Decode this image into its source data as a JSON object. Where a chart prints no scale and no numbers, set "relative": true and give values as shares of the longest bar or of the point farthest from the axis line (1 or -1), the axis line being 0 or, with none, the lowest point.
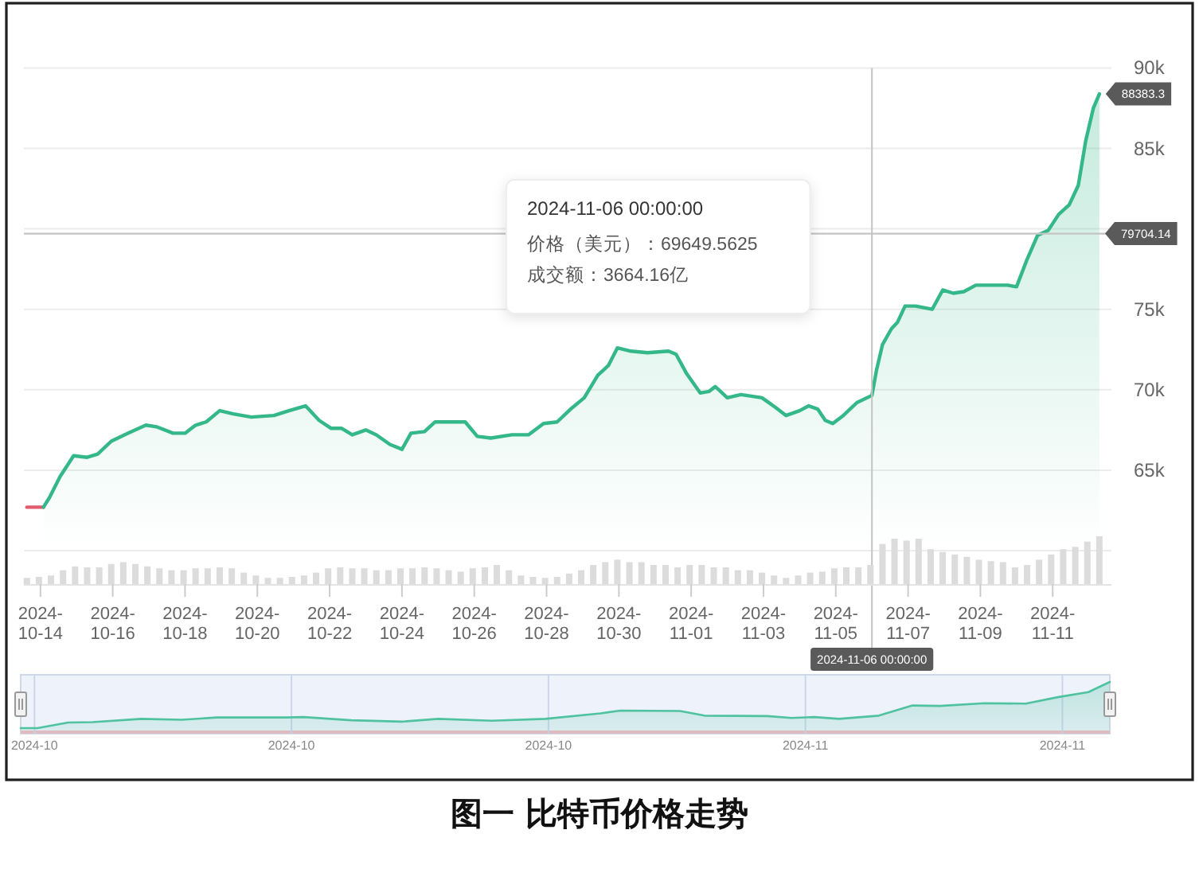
{
  "chart_data": [
    {
      "type": "area",
      "title": "图一 比特币价格走势",
      "xlim": [
        "2024-10-13T13:00",
        "2024-11-12T15:00"
      ],
      "ylim": [
        60000,
        90000
      ],
      "yticks": [
        {
          "value": 60000,
          "label": null
        },
        {
          "value": 65000,
          "label": "65k"
        },
        {
          "value": 70000,
          "label": "70k"
        },
        {
          "value": 75000,
          "label": "75k"
        },
        {
          "value": 80000,
          "label": null
        },
        {
          "value": 85000,
          "label": "85k"
        },
        {
          "value": 90000,
          "label": "90k"
        }
      ],
      "grid": "y",
      "tick_labels": "y",
      "series": [
        {
          "type": "line",
          "color": "#e35b6f",
          "x": [
            "2024-10-13T15:00",
            "2024-10-14T02:00"
          ],
          "values": [
            62700,
            62700
          ]
        },
        {
          "color": "#34b889",
          "x": [
            "2024-10-14T02:00",
            "2024-10-14T06:00",
            "2024-10-14T13:00",
            "2024-10-14T22:00",
            "2024-10-15T07:00",
            "2024-10-15T14:00",
            "2024-10-15T23:00",
            "2024-10-16T10:00",
            "2024-10-16T22:00",
            "2024-10-17T05:00",
            "2024-10-17T16:00",
            "2024-10-18T00:00",
            "2024-10-18T07:00",
            "2024-10-18T14:00",
            "2024-10-18T23:00",
            "2024-10-19T08:00",
            "2024-10-19T20:00",
            "2024-10-20T11:00",
            "2024-10-20T21:00",
            "2024-10-21T08:00",
            "2024-10-21T17:00",
            "2024-10-22T01:00",
            "2024-10-22T08:00",
            "2024-10-22T15:00",
            "2024-10-23T00:00",
            "2024-10-23T07:00",
            "2024-10-23T16:00",
            "2024-10-24T00:00",
            "2024-10-24T06:00",
            "2024-10-24T15:00",
            "2024-10-24T22:00",
            "2024-10-25T18:00",
            "2024-10-26T02:00",
            "2024-10-26T11:00",
            "2024-10-27T01:00",
            "2024-10-27T12:00",
            "2024-10-27T22:00",
            "2024-10-28T07:00",
            "2024-10-28T16:00",
            "2024-10-29T01:00",
            "2024-10-29T10:00",
            "2024-10-29T17:00",
            "2024-10-29T23:00",
            "2024-10-30T08:00",
            "2024-10-30T19:00",
            "2024-10-31T09:00",
            "2024-10-31T14:00",
            "2024-10-31T21:00",
            "2024-11-01T06:00",
            "2024-11-01T12:00",
            "2024-11-01T16:00",
            "2024-11-02T00:00",
            "2024-11-02T09:00",
            "2024-11-02T23:00",
            "2024-11-03T08:00",
            "2024-11-03T15:00",
            "2024-11-04T00:00",
            "2024-11-04T06:00",
            "2024-11-04T12:00",
            "2024-11-04T17:00",
            "2024-11-04T22:00",
            "2024-11-05T05:00",
            "2024-11-05T14:00",
            "2024-11-06T00:00",
            "2024-11-06T03:00",
            "2024-11-06T07:00",
            "2024-11-06T13:00",
            "2024-11-06T17:00",
            "2024-11-06T22:00",
            "2024-11-07T05:00",
            "2024-11-07T16:00",
            "2024-11-07T23:00",
            "2024-11-08T06:00",
            "2024-11-08T13:00",
            "2024-11-08T21:00",
            "2024-11-09T08:00",
            "2024-11-09T18:00",
            "2024-11-10T00:00",
            "2024-11-10T07:00",
            "2024-11-10T14:00",
            "2024-11-10T21:00",
            "2024-11-11T04:00",
            "2024-11-11T11:00",
            "2024-11-11T17:00",
            "2024-11-11T22:00",
            "2024-11-12T03:00",
            "2024-11-12T07:00"
          ],
          "values": [
            62700,
            63300,
            64600,
            65900,
            65800,
            66000,
            66800,
            67300,
            67800,
            67700,
            67300,
            67300,
            67800,
            68000,
            68700,
            68500,
            68300,
            68400,
            68700,
            69000,
            68100,
            67600,
            67600,
            67200,
            67500,
            67200,
            66600,
            66300,
            67300,
            67400,
            68000,
            68000,
            67100,
            67000,
            67200,
            67200,
            67900,
            68000,
            68800,
            69500,
            70900,
            71500,
            72600,
            72400,
            72300,
            72400,
            72200,
            71000,
            69800,
            69900,
            70200,
            69500,
            69700,
            69500,
            68900,
            68400,
            68700,
            69000,
            68800,
            68100,
            67900,
            68400,
            69200,
            69649.5625,
            71200,
            72800,
            73800,
            74200,
            75200,
            75200,
            75000,
            76200,
            76000,
            76100,
            76500,
            76500,
            76500,
            76400,
            78100,
            79600,
            79900,
            80900,
            81500,
            82700,
            85500,
            87500,
            88383.3
          ]
        }
      ],
      "ref_lines": [
        {
          "axis": "y",
          "value": 79704.14,
          "label": "79704.14"
        },
        {
          "axis": "x",
          "value": "2024-11-06",
          "label": "2024-11-06 00:00:00"
        }
      ],
      "annotations": [
        "2024-11-06 00:00:00",
        "价格（美元）：69649.5625",
        "成交额：3664.16亿",
        {
          "text": "88383.3",
          "x": "2024-11-12T07:00",
          "y": 88383.3
        }
      ]
    },
    {
      "type": "bar",
      "relative": true,
      "color": "#dcdcdc",
      "xlim": [
        "2024-10-13T13:00",
        "2024-11-12T15:00"
      ],
      "tick_labels": "x",
      "x": [
        "2024-10-13T15:00",
        "2024-10-13T23:00",
        "2024-10-14T07:00",
        "2024-10-14T15:00",
        "2024-10-14T23:00",
        "2024-10-15T07:00",
        "2024-10-15T15:00",
        "2024-10-15T23:00",
        "2024-10-16T07:00",
        "2024-10-16T15:00",
        "2024-10-16T23:00",
        "2024-10-17T07:00",
        "2024-10-17T15:00",
        "2024-10-17T23:00",
        "2024-10-18T07:00",
        "2024-10-18T15:00",
        "2024-10-18T23:00",
        "2024-10-19T07:00",
        "2024-10-19T15:00",
        "2024-10-19T23:00",
        "2024-10-20T07:00",
        "2024-10-20T15:00",
        "2024-10-20T23:00",
        "2024-10-21T07:00",
        "2024-10-21T15:00",
        "2024-10-21T23:00",
        "2024-10-22T07:00",
        "2024-10-22T15:00",
        "2024-10-22T23:00",
        "2024-10-23T07:00",
        "2024-10-23T15:00",
        "2024-10-23T23:00",
        "2024-10-24T07:00",
        "2024-10-24T15:00",
        "2024-10-24T23:00",
        "2024-10-25T07:00",
        "2024-10-25T15:00",
        "2024-10-25T23:00",
        "2024-10-26T07:00",
        "2024-10-26T15:00",
        "2024-10-26T23:00",
        "2024-10-27T07:00",
        "2024-10-27T15:00",
        "2024-10-27T23:00",
        "2024-10-28T07:00",
        "2024-10-28T15:00",
        "2024-10-28T23:00",
        "2024-10-29T07:00",
        "2024-10-29T15:00",
        "2024-10-29T23:00",
        "2024-10-30T07:00",
        "2024-10-30T15:00",
        "2024-10-30T23:00",
        "2024-10-31T07:00",
        "2024-10-31T15:00",
        "2024-10-31T23:00",
        "2024-11-01T07:00",
        "2024-11-01T15:00",
        "2024-11-01T23:00",
        "2024-11-02T07:00",
        "2024-11-02T15:00",
        "2024-11-02T23:00",
        "2024-11-03T07:00",
        "2024-11-03T15:00",
        "2024-11-03T23:00",
        "2024-11-04T07:00",
        "2024-11-04T15:00",
        "2024-11-04T23:00",
        "2024-11-05T07:00",
        "2024-11-05T15:00",
        "2024-11-05T23:00",
        "2024-11-06T07:00",
        "2024-11-06T15:00",
        "2024-11-06T23:00",
        "2024-11-07T07:00",
        "2024-11-07T15:00",
        "2024-11-07T23:00",
        "2024-11-08T07:00",
        "2024-11-08T15:00",
        "2024-11-08T23:00",
        "2024-11-09T07:00",
        "2024-11-09T15:00",
        "2024-11-09T23:00",
        "2024-11-10T07:00",
        "2024-11-10T15:00",
        "2024-11-10T23:00",
        "2024-11-11T07:00",
        "2024-11-11T15:00",
        "2024-11-11T23:00",
        "2024-11-12T07:00"
      ],
      "values": [
        0.13,
        0.15,
        0.18,
        0.29,
        0.37,
        0.35,
        0.35,
        0.42,
        0.46,
        0.42,
        0.37,
        0.33,
        0.29,
        0.29,
        0.33,
        0.33,
        0.35,
        0.33,
        0.24,
        0.18,
        0.13,
        0.13,
        0.15,
        0.18,
        0.24,
        0.33,
        0.35,
        0.33,
        0.33,
        0.29,
        0.29,
        0.33,
        0.33,
        0.35,
        0.33,
        0.29,
        0.26,
        0.33,
        0.35,
        0.4,
        0.29,
        0.18,
        0.15,
        0.13,
        0.15,
        0.22,
        0.29,
        0.4,
        0.46,
        0.51,
        0.46,
        0.46,
        0.4,
        0.4,
        0.35,
        0.4,
        0.4,
        0.35,
        0.35,
        0.29,
        0.29,
        0.24,
        0.18,
        0.13,
        0.18,
        0.24,
        0.26,
        0.33,
        0.35,
        0.35,
        0.4,
        0.84,
        0.95,
        0.91,
        0.95,
        0.73,
        0.67,
        0.62,
        0.57,
        0.51,
        0.48,
        0.46,
        0.35,
        0.4,
        0.51,
        0.62,
        0.73,
        0.78,
        0.89,
        1
      ],
      "xticks": [
        {
          "value": "2024-10-14",
          "label": "2024-10-14"
        },
        {
          "value": "2024-10-16",
          "label": "2024-10-16"
        },
        {
          "value": "2024-10-18",
          "label": "2024-10-18"
        },
        {
          "value": "2024-10-20",
          "label": "2024-10-20"
        },
        {
          "value": "2024-10-22",
          "label": "2024-10-22"
        },
        {
          "value": "2024-10-24",
          "label": "2024-10-24"
        },
        {
          "value": "2024-10-26",
          "label": "2024-10-26"
        },
        {
          "value": "2024-10-28",
          "label": "2024-10-28"
        },
        {
          "value": "2024-10-30",
          "label": "2024-10-30"
        },
        {
          "value": "2024-11-01",
          "label": "2024-11-01"
        },
        {
          "value": "2024-11-03",
          "label": "2024-11-03"
        },
        {
          "value": "2024-11-05",
          "label": "2024-11-05"
        },
        {
          "value": "2024-11-07",
          "label": "2024-11-07"
        },
        {
          "value": "2024-11-09",
          "label": "2024-11-09"
        },
        {
          "value": "2024-11-11",
          "label": "2024-11-11"
        }
      ]
    },
    {
      "type": "area",
      "relative": true,
      "color": "#4fc2a0",
      "xlim": [
        "2024-10-13T15:00",
        "2024-11-12T07:00"
      ],
      "grid": "x",
      "tick_labels": "x",
      "x": [
        "2024-10-13T15:00",
        "2024-10-14T02:00",
        "2024-10-14T22:00",
        "2024-10-15T14:00",
        "2024-10-16T22:00",
        "2024-10-18T00:00",
        "2024-10-18T23:00",
        "2024-10-20T21:00",
        "2024-10-21T08:00",
        "2024-10-22T15:00",
        "2024-10-24T00:00",
        "2024-10-25T00:00",
        "2024-10-26T11:00",
        "2024-10-27T22:00",
        "2024-10-29T10:00",
        "2024-10-29T23:00",
        "2024-10-31T14:00",
        "2024-11-01T06:00",
        "2024-11-02T23:00",
        "2024-11-03T15:00",
        "2024-11-04T06:00",
        "2024-11-04T22:00",
        "2024-11-06T00:00",
        "2024-11-06T22:00",
        "2024-11-07T16:00",
        "2024-11-08T21:00",
        "2024-11-10T00:00",
        "2024-11-10T21:00",
        "2024-11-11T17:00",
        "2024-11-12T07:00"
      ],
      "values": [
        0,
        0,
        0.12,
        0.13,
        0.2,
        0.18,
        0.23,
        0.23,
        0.24,
        0.17,
        0.14,
        0.2,
        0.16,
        0.2,
        0.32,
        0.38,
        0.37,
        0.27,
        0.26,
        0.22,
        0.24,
        0.2,
        0.27,
        0.49,
        0.48,
        0.54,
        0.53,
        0.67,
        0.78,
        1
      ],
      "xticks": [
        {
          "value": "2024-10-14",
          "label": "2024-10"
        },
        {
          "value": "2024-10-21",
          "label": "2024-10"
        },
        {
          "value": "2024-10-28",
          "label": "2024-10"
        },
        {
          "value": "2024-11-04",
          "label": "2024-11"
        },
        {
          "value": "2024-11-11",
          "label": "2024-11"
        }
      ]
    }
  ]
}
